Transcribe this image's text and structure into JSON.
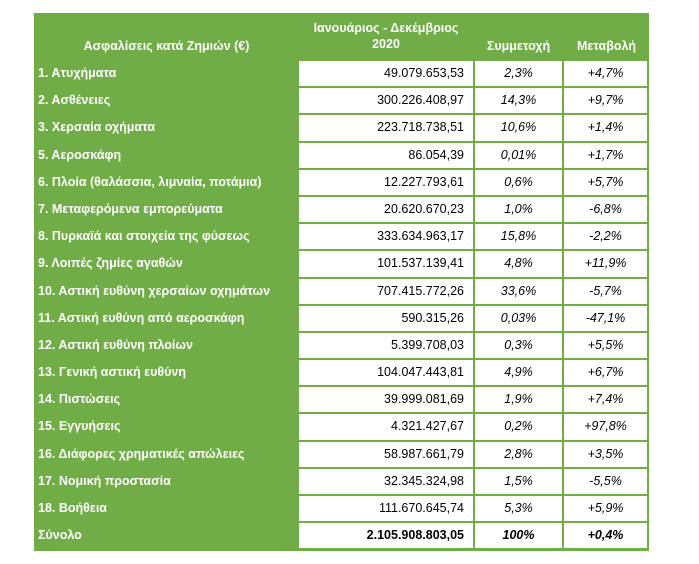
{
  "colors": {
    "header_green": "#70AD47",
    "cell_bg": "#FFFFFF"
  },
  "header": {
    "category": "Ασφαλίσεις κατά Ζημιών (€)",
    "value_line1": "Ιανουάριος - Δεκέμβριος",
    "value_line2": "2020",
    "share": "Συμμετοχή",
    "change": "Μεταβολή"
  },
  "rows": [
    {
      "category": "1. Ατυχήματα",
      "value": "49.079.653,53",
      "share": "2,3%",
      "change": "+4,7%"
    },
    {
      "category": "2. Ασθένειες",
      "value": "300.226.408,97",
      "share": "14,3%",
      "change": "+9,7%"
    },
    {
      "category": "3. Χερσαία οχήματα",
      "value": "223.718.738,51",
      "share": "10,6%",
      "change": "+1,4%"
    },
    {
      "category": "5. Αεροσκάφη",
      "value": "86.054,39",
      "share": "0,01%",
      "change": "+1,7%"
    },
    {
      "category": "6. Πλοία (θαλάσσια, λιμναία, ποτάμια)",
      "value": "12.227.793,61",
      "share": "0,6%",
      "change": "+5,7%"
    },
    {
      "category": "7. Μεταφερόμενα εμπορεύματα",
      "value": "20.620.670,23",
      "share": "1,0%",
      "change": "-6,8%"
    },
    {
      "category": "8. Πυρκαϊά και στοιχεία της φύσεως",
      "value": "333.634.963,17",
      "share": "15,8%",
      "change": "-2,2%"
    },
    {
      "category": "9. Λοιπές ζημίες αγαθών",
      "value": "101.537.139,41",
      "share": "4,8%",
      "change": "+11,9%"
    },
    {
      "category": "10. Αστική ευθύνη χερσαίων οχημάτων",
      "value": "707.415.772,26",
      "share": "33,6%",
      "change": "-5,7%"
    },
    {
      "category": "11. Αστική ευθύνη από αεροσκάφη",
      "value": "590.315,26",
      "share": "0,03%",
      "change": "-47,1%"
    },
    {
      "category": "12. Αστική ευθύνη πλοίων",
      "value": "5.399.708,03",
      "share": "0,3%",
      "change": "+5,5%"
    },
    {
      "category": "13. Γενική αστική ευθύνη",
      "value": "104.047.443,81",
      "share": "4,9%",
      "change": "+6,7%"
    },
    {
      "category": "14. Πιστώσεις",
      "value": "39.999.081,69",
      "share": "1,9%",
      "change": "+7,4%"
    },
    {
      "category": "15. Εγγυήσεις",
      "value": "4.321.427,67",
      "share": "0,2%",
      "change": "+97,8%"
    },
    {
      "category": "16. Διάφορες χρηματικές απώλειες",
      "value": "58.987.661,79",
      "share": "2,8%",
      "change": "+3,5%"
    },
    {
      "category": "17. Νομική προστασία",
      "value": "32.345.324,98",
      "share": "1,5%",
      "change": "-5,5%"
    },
    {
      "category": "18. Βοήθεια",
      "value": "111.670.645,74",
      "share": "5,3%",
      "change": "+5,9%"
    }
  ],
  "total": {
    "category": "Σύνολο",
    "value": "2.105.908.803,05",
    "share": "100%",
    "change": "+0,4%"
  }
}
